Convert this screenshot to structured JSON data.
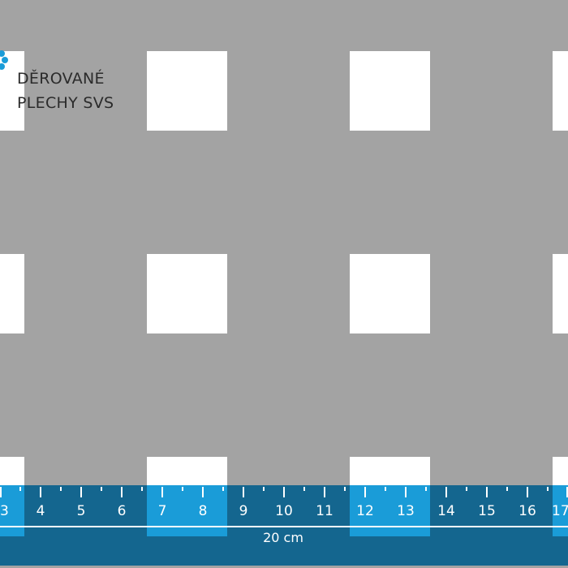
{
  "logo": {
    "line1": "DĚROVANÉ",
    "line2": "PLECHY SVS",
    "icon": "blue-flower-logo-icon"
  },
  "ruler": {
    "labels": [
      "3",
      "4",
      "5",
      "6",
      "7",
      "8",
      "9",
      "10",
      "11",
      "12",
      "13",
      "14",
      "15",
      "16",
      "17"
    ],
    "scale_label": "20 cm"
  },
  "colors": {
    "sheet": "#a3a3a3",
    "hole": "#ffffff",
    "ruler": "#14668f",
    "ruler_hole": "#1a9cd8",
    "logo": "#1a9cd8"
  }
}
